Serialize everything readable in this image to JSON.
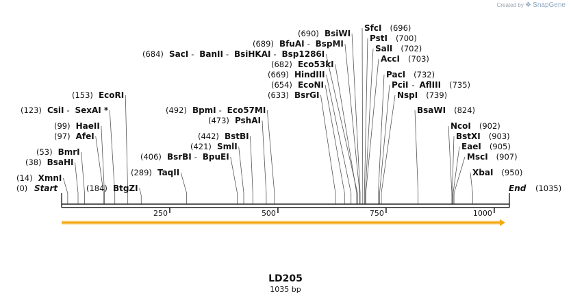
{
  "watermark": {
    "created_by": "Created by",
    "brand": "SnapGene"
  },
  "plasmid": {
    "name": "LD205",
    "length_label": "1035 bp"
  },
  "map": {
    "total_length": 1035,
    "ticks": [
      250,
      500,
      750,
      1000
    ],
    "feature": {
      "start": 0,
      "end": 1035,
      "color": "#f3a712",
      "direction": "forward"
    },
    "start_label": "Start",
    "start_pos": "(0)",
    "end_label": "End",
    "end_pos": "(1035)"
  },
  "sites": [
    {
      "names": [
        "XmnI"
      ],
      "pos": 14
    },
    {
      "names": [
        "BsaHI"
      ],
      "pos": 38
    },
    {
      "names": [
        "BmrI"
      ],
      "pos": 53
    },
    {
      "names": [
        "AfeI"
      ],
      "pos": 97
    },
    {
      "names": [
        "HaeII"
      ],
      "pos": 99
    },
    {
      "names": [
        "CsiI",
        "SexAI *"
      ],
      "pos": 123
    },
    {
      "names": [
        "EcoRI"
      ],
      "pos": 153
    },
    {
      "names": [
        "BtgZI"
      ],
      "pos": 184
    },
    {
      "names": [
        "TaqII"
      ],
      "pos": 289
    },
    {
      "names": [
        "BsrBI",
        "BpuEI"
      ],
      "pos": 406
    },
    {
      "names": [
        "SmlI"
      ],
      "pos": 421
    },
    {
      "names": [
        "BstBI"
      ],
      "pos": 442
    },
    {
      "names": [
        "PshAI"
      ],
      "pos": 473
    },
    {
      "names": [
        "BpmI",
        "Eco57MI"
      ],
      "pos": 492
    },
    {
      "names": [
        "BsrGI"
      ],
      "pos": 633
    },
    {
      "names": [
        "EcoNI"
      ],
      "pos": 654
    },
    {
      "names": [
        "HindIII"
      ],
      "pos": 669
    },
    {
      "names": [
        "Eco53kI"
      ],
      "pos": 682
    },
    {
      "names": [
        "SacI",
        "BanII",
        "BsiHKAI",
        "Bsp1286I"
      ],
      "pos": 684
    },
    {
      "names": [
        "BfuAI",
        "BspMI"
      ],
      "pos": 689
    },
    {
      "names": [
        "BsiWI"
      ],
      "pos": 690
    },
    {
      "names": [
        "SfcI"
      ],
      "pos": 696
    },
    {
      "names": [
        "PstI"
      ],
      "pos": 700
    },
    {
      "names": [
        "SalI"
      ],
      "pos": 702
    },
    {
      "names": [
        "AccI"
      ],
      "pos": 703
    },
    {
      "names": [
        "PacI"
      ],
      "pos": 732
    },
    {
      "names": [
        "PciI",
        "AflIII"
      ],
      "pos": 735
    },
    {
      "names": [
        "NspI"
      ],
      "pos": 739
    },
    {
      "names": [
        "BsaWI"
      ],
      "pos": 824
    },
    {
      "names": [
        "NcoI"
      ],
      "pos": 902
    },
    {
      "names": [
        "BstXI"
      ],
      "pos": 903
    },
    {
      "names": [
        "EaeI"
      ],
      "pos": 905
    },
    {
      "names": [
        "MscI"
      ],
      "pos": 907
    },
    {
      "names": [
        "XbaI"
      ],
      "pos": 950
    }
  ]
}
